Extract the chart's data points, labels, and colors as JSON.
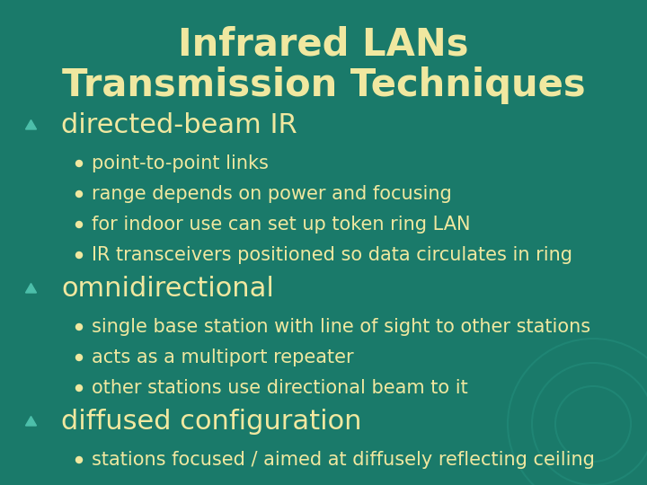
{
  "title_line1": "Infrared LANs",
  "title_line2": "Transmission Techniques",
  "title_color": "#f0e8a0",
  "bg_color": "#1a7a6a",
  "text_color": "#f0e8a0",
  "arrow_color": "#4dbfaa",
  "bullet_color": "#f0e8a0",
  "title_fontsize": 30,
  "heading_fontsize": 22,
  "body_fontsize": 15,
  "sections": [
    {
      "heading": "directed-beam IR",
      "bullets": [
        "point-to-point links",
        "range depends on power and focusing",
        "for indoor use can set up token ring LAN",
        "IR transceivers positioned so data circulates in ring"
      ]
    },
    {
      "heading": "omnidirectional",
      "bullets": [
        "single base station with line of sight to other stations",
        "acts as a multiport repeater",
        "other stations use directional beam to it"
      ]
    },
    {
      "heading": "diffused configuration",
      "bullets": [
        "stations focused / aimed at diffusely reflecting ceiling"
      ]
    }
  ]
}
